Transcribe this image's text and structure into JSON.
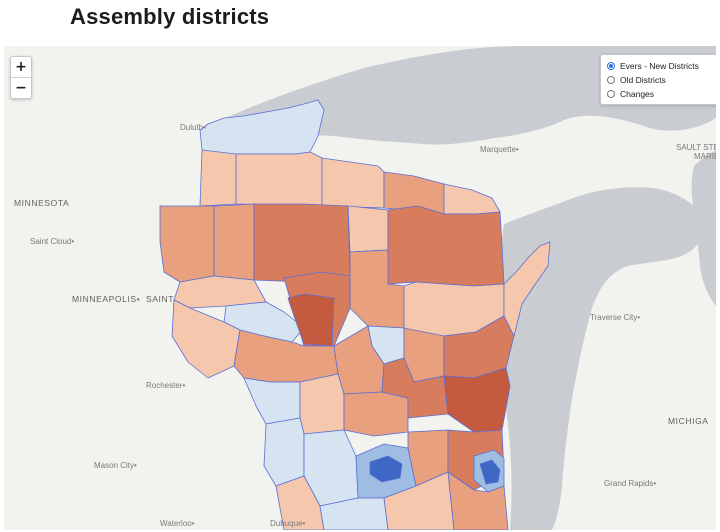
{
  "page": {
    "title": "Assembly districts"
  },
  "map": {
    "zoom_in": "+",
    "zoom_out": "−",
    "layers": [
      {
        "label": "Evers - New Districts",
        "selected": true
      },
      {
        "label": "Old Districts",
        "selected": false
      },
      {
        "label": "Changes",
        "selected": false
      }
    ],
    "labels": {
      "minnesota": "MINNESOTA",
      "michigan": "MICHIGA",
      "duluth": "Duluth•",
      "marquette": "Marquette•",
      "sault": "SAULT STE\nMARIE",
      "saint_cloud": "Saint Cloud•",
      "minneapolis": "MINNEAPOLIS•",
      "saint": "SAINT",
      "traverse": "Traverse City•",
      "rochester": "Rochester•",
      "mason_city": "Mason City•",
      "grand_rapids": "Grand Rapids•",
      "waterloo": "Waterloo•",
      "dubuque": "Dubuque•"
    },
    "colors": {
      "water": "#c9ccd1",
      "land": "#f2f2ef",
      "district_border": "#5a6fd6",
      "light_red": "#f5c7ad",
      "mid_red": "#e8a07e",
      "dark_red": "#d87c5e",
      "deep_red": "#c45a3e",
      "light_blue": "#d6e4f2",
      "mid_blue": "#9fbde2",
      "deep_blue": "#3f68c4"
    }
  }
}
